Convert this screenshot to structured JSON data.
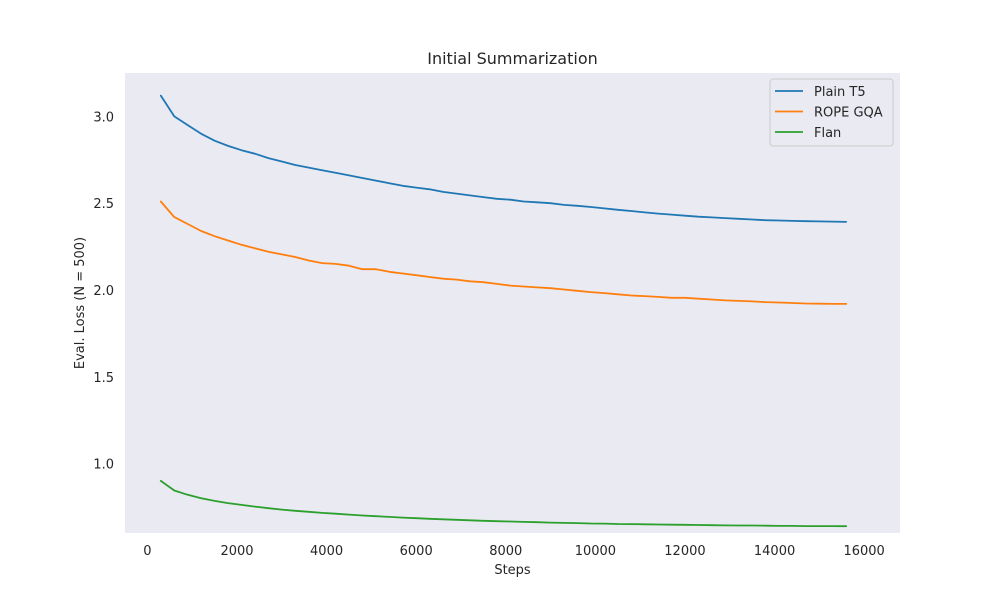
{
  "chart_data": {
    "type": "line",
    "title": "Initial Summarization",
    "xlabel": "Steps",
    "ylabel": "Eval. Loss (N = 500)",
    "xlim": [
      -500,
      16800
    ],
    "ylim": [
      0.6,
      3.25
    ],
    "xticks": [
      0,
      2000,
      4000,
      6000,
      8000,
      10000,
      12000,
      14000,
      16000
    ],
    "yticks": [
      1.0,
      1.5,
      2.0,
      2.5,
      3.0
    ],
    "xtick_labels": [
      "0",
      "2000",
      "4000",
      "6000",
      "8000",
      "10000",
      "12000",
      "14000",
      "16000"
    ],
    "ytick_labels": [
      "1.0",
      "1.5",
      "2.0",
      "2.5",
      "3.0"
    ],
    "grid": false,
    "legend_position": "top-right",
    "x": [
      300,
      600,
      900,
      1200,
      1500,
      1800,
      2100,
      2400,
      2700,
      3000,
      3300,
      3600,
      3900,
      4200,
      4500,
      4800,
      5100,
      5400,
      5700,
      6000,
      6300,
      6600,
      6900,
      7200,
      7500,
      7800,
      8100,
      8400,
      8700,
      9000,
      9300,
      9600,
      9900,
      10200,
      10500,
      10800,
      11100,
      11400,
      11700,
      12000,
      12300,
      12600,
      12900,
      13200,
      13500,
      13800,
      14100,
      14400,
      14700,
      15000,
      15300,
      15600
    ],
    "series": [
      {
        "name": "Plain T5",
        "color": "#1f77b4",
        "values": [
          3.12,
          3.0,
          2.95,
          2.9,
          2.86,
          2.83,
          2.805,
          2.785,
          2.76,
          2.74,
          2.72,
          2.705,
          2.69,
          2.675,
          2.66,
          2.645,
          2.63,
          2.615,
          2.6,
          2.59,
          2.58,
          2.565,
          2.555,
          2.545,
          2.535,
          2.525,
          2.52,
          2.51,
          2.505,
          2.5,
          2.49,
          2.485,
          2.478,
          2.47,
          2.462,
          2.455,
          2.447,
          2.44,
          2.434,
          2.428,
          2.422,
          2.418,
          2.414,
          2.41,
          2.406,
          2.402,
          2.4,
          2.398,
          2.396,
          2.395,
          2.394,
          2.392
        ]
      },
      {
        "name": "ROPE GQA",
        "color": "#ff7f0e",
        "values": [
          2.51,
          2.42,
          2.38,
          2.34,
          2.31,
          2.285,
          2.26,
          2.24,
          2.22,
          2.205,
          2.19,
          2.17,
          2.155,
          2.15,
          2.14,
          2.12,
          2.12,
          2.105,
          2.095,
          2.085,
          2.075,
          2.065,
          2.06,
          2.05,
          2.045,
          2.035,
          2.025,
          2.02,
          2.015,
          2.01,
          2.003,
          1.995,
          1.988,
          1.982,
          1.975,
          1.968,
          1.965,
          1.96,
          1.955,
          1.955,
          1.95,
          1.945,
          1.94,
          1.937,
          1.934,
          1.93,
          1.928,
          1.925,
          1.922,
          1.921,
          1.92,
          1.92
        ]
      },
      {
        "name": "Flan",
        "color": "#2ca02c",
        "values": [
          0.9,
          0.845,
          0.82,
          0.8,
          0.785,
          0.772,
          0.762,
          0.752,
          0.743,
          0.735,
          0.728,
          0.722,
          0.716,
          0.711,
          0.706,
          0.701,
          0.697,
          0.693,
          0.689,
          0.685,
          0.682,
          0.679,
          0.676,
          0.673,
          0.67,
          0.668,
          0.666,
          0.664,
          0.662,
          0.66,
          0.658,
          0.657,
          0.655,
          0.654,
          0.652,
          0.651,
          0.65,
          0.649,
          0.648,
          0.647,
          0.646,
          0.645,
          0.644,
          0.643,
          0.643,
          0.642,
          0.641,
          0.641,
          0.64,
          0.64,
          0.64,
          0.639
        ]
      }
    ],
    "colors": {
      "plot_background": "#eaeaf2",
      "page_background": "#ffffff",
      "legend_border": "#cccccc"
    }
  }
}
